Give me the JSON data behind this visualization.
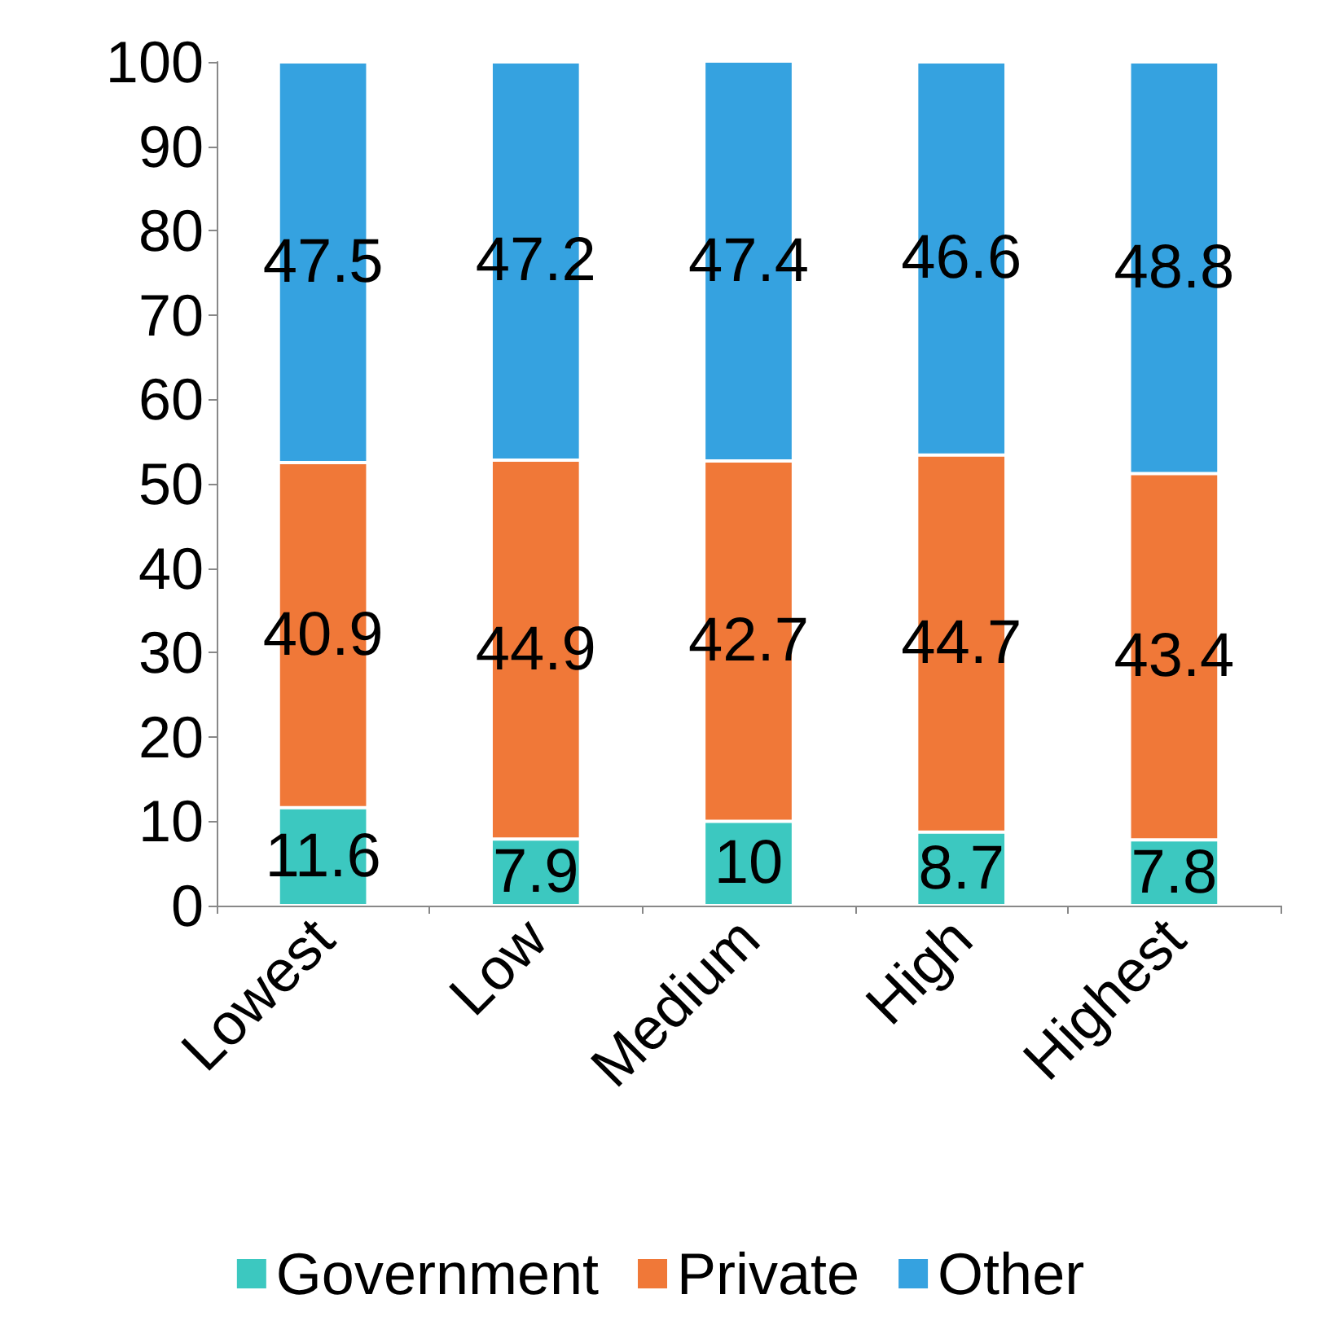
{
  "chart_data": {
    "type": "bar",
    "stacked": true,
    "categories": [
      "Lowest",
      "Low",
      "Medium",
      "High",
      "Highest"
    ],
    "series": [
      {
        "name": "Government",
        "color": "#3cc8c0",
        "values": [
          11.6,
          7.9,
          10,
          8.7,
          7.8
        ]
      },
      {
        "name": "Private",
        "color": "#f07838",
        "values": [
          40.9,
          44.9,
          42.7,
          44.7,
          43.4
        ]
      },
      {
        "name": "Other",
        "color": "#35a2e0",
        "values": [
          47.5,
          47.2,
          47.4,
          46.6,
          48.8
        ]
      }
    ],
    "ylim": [
      0,
      100
    ],
    "yticks": [
      0,
      10,
      20,
      30,
      40,
      50,
      60,
      70,
      80,
      90,
      100
    ],
    "data_labels": true,
    "legend": "bottom"
  }
}
